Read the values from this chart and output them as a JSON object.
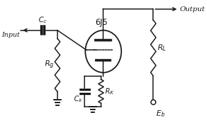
{
  "title": "6J5",
  "bg_color": "#ffffff",
  "line_color": "#1a1a1a",
  "text_color": "#1a1a1a"
}
